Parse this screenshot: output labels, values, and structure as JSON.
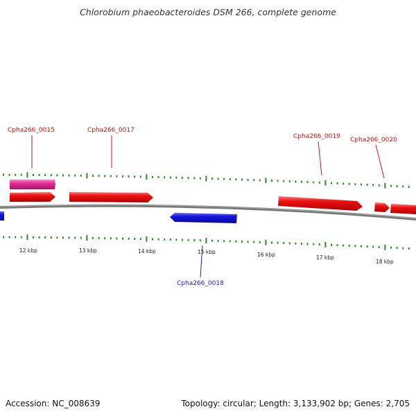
{
  "title": "Chlorobium phaeobacteroides DSM 266, complete genome",
  "footer": {
    "accession": "Accession: NC_008639",
    "summary": "Topology: circular; Length: 3,133,902 bp; Genes: 2,705"
  },
  "colors": {
    "forward_gene": "#ee1111",
    "reverse_gene": "#1515dd",
    "rna_gene": "#e8309a",
    "ticks": "#2a8a2a",
    "backbone": "#777777"
  },
  "axis_labels": [
    "12 kbp",
    "13 kbp",
    "14 kbp",
    "15 kbp",
    "16 kbp",
    "17 kbp",
    "18 kbp"
  ],
  "genes": [
    {
      "name": "Cpha266_0015",
      "strand": "+",
      "label_color": "#cc1111"
    },
    {
      "name": "Cpha266_0017",
      "strand": "+",
      "label_color": "#cc1111"
    },
    {
      "name": "Cpha266_0018",
      "strand": "-",
      "label_color": "#1a1acc"
    },
    {
      "name": "Cpha266_0019",
      "strand": "+",
      "label_color": "#cc1111"
    },
    {
      "name": "Cpha266_0020",
      "strand": "+",
      "label_color": "#cc1111"
    }
  ]
}
